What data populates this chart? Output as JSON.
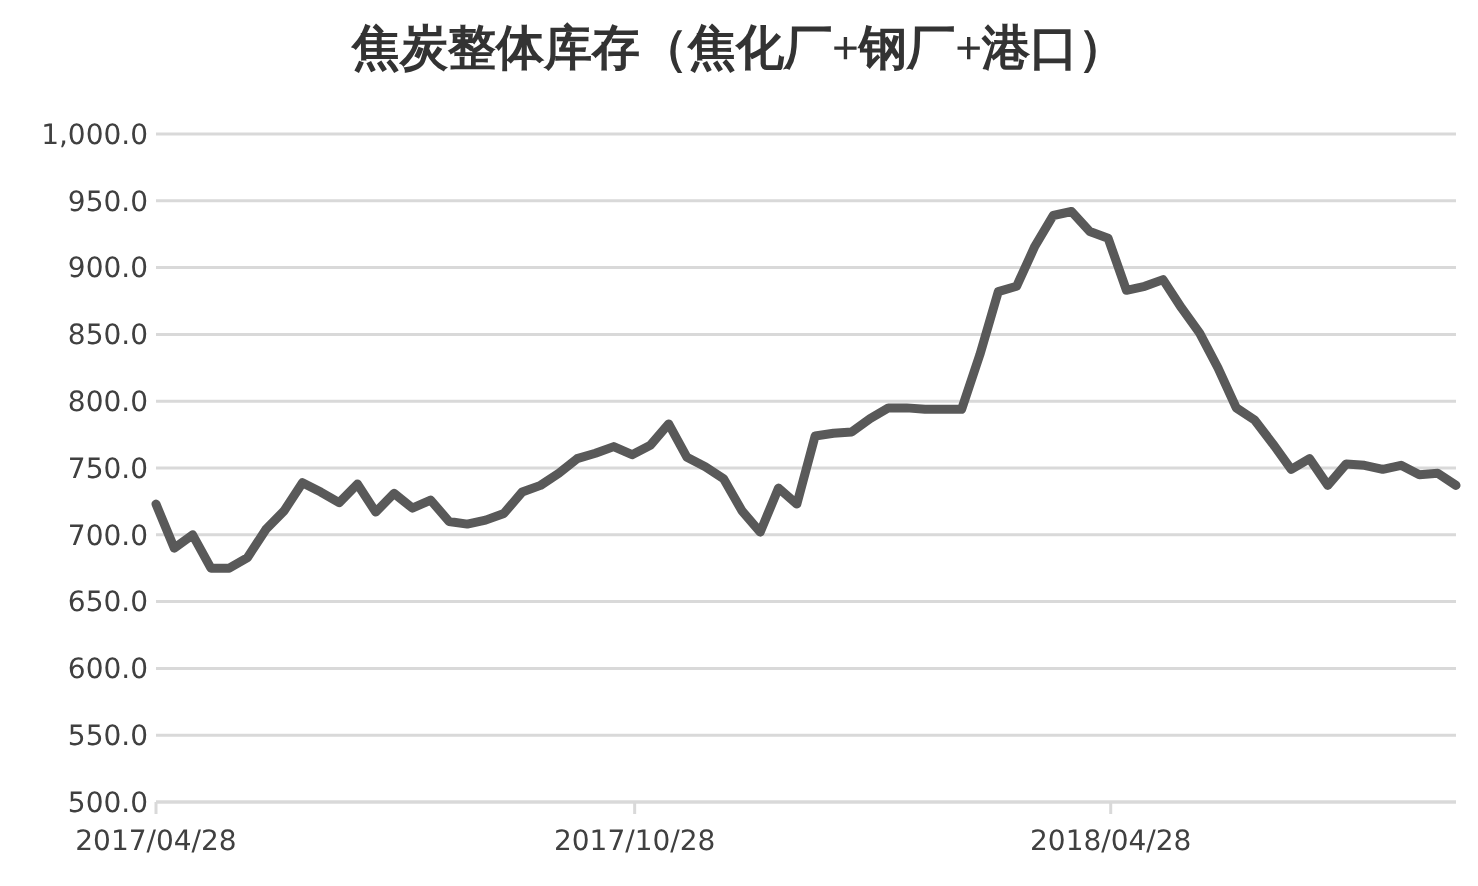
{
  "chart_data": {
    "type": "line",
    "title": "焦炭整体库存（焦化厂+钢厂+港口）",
    "x": [
      "2017-04-28",
      "2017-05-05",
      "2017-05-12",
      "2017-05-19",
      "2017-05-26",
      "2017-06-02",
      "2017-06-09",
      "2017-06-16",
      "2017-06-23",
      "2017-06-30",
      "2017-07-07",
      "2017-07-14",
      "2017-07-21",
      "2017-07-28",
      "2017-08-04",
      "2017-08-11",
      "2017-08-18",
      "2017-08-25",
      "2017-09-01",
      "2017-09-08",
      "2017-09-15",
      "2017-09-22",
      "2017-09-29",
      "2017-10-06",
      "2017-10-13",
      "2017-10-20",
      "2017-10-27",
      "2017-11-03",
      "2017-11-10",
      "2017-11-17",
      "2017-11-24",
      "2017-12-01",
      "2017-12-08",
      "2017-12-15",
      "2017-12-22",
      "2017-12-29",
      "2018-01-05",
      "2018-01-12",
      "2018-01-19",
      "2018-01-26",
      "2018-02-02",
      "2018-02-09",
      "2018-02-16",
      "2018-02-23",
      "2018-03-02",
      "2018-03-09",
      "2018-03-16",
      "2018-03-23",
      "2018-03-30",
      "2018-04-06",
      "2018-04-13",
      "2018-04-20",
      "2018-04-27",
      "2018-05-04",
      "2018-05-11",
      "2018-05-18",
      "2018-05-25",
      "2018-06-01",
      "2018-06-08",
      "2018-06-15",
      "2018-06-22",
      "2018-06-29",
      "2018-07-06",
      "2018-07-13",
      "2018-07-20",
      "2018-07-27",
      "2018-08-03",
      "2018-08-10",
      "2018-08-17",
      "2018-08-24",
      "2018-08-31",
      "2018-09-07"
    ],
    "series": [
      {
        "color": "#595959",
        "values": [
          723,
          690,
          700,
          675,
          675,
          683,
          704,
          718,
          739,
          732,
          724,
          738,
          717,
          731,
          720,
          726,
          710,
          708,
          711,
          716,
          732,
          737,
          746,
          757,
          761,
          766,
          760,
          767,
          783,
          758,
          751,
          742,
          718,
          702,
          735,
          723,
          774,
          776,
          777,
          787,
          795,
          795,
          794,
          794,
          794,
          835,
          882,
          886,
          916,
          939,
          942,
          927,
          922,
          883,
          886,
          891,
          870,
          851,
          825,
          795,
          786,
          768,
          749,
          757,
          737,
          753,
          752,
          749,
          752,
          745,
          746,
          737
        ]
      }
    ],
    "xlim": [
      "2017-04-28",
      "2018-09-07"
    ],
    "xticks": [
      {
        "value": "2017-04-28",
        "label": "2017/04/28"
      },
      {
        "value": "2017-10-28",
        "label": "2017/10/28"
      },
      {
        "value": "2018-04-28",
        "label": "2018/04/28"
      }
    ],
    "ylim": [
      500,
      1000
    ],
    "yticks": [
      {
        "value": 500,
        "label": "500.0"
      },
      {
        "value": 550,
        "label": "550.0"
      },
      {
        "value": 600,
        "label": "600.0"
      },
      {
        "value": 650,
        "label": "650.0"
      },
      {
        "value": 700,
        "label": "700.0"
      },
      {
        "value": 750,
        "label": "750.0"
      },
      {
        "value": 800,
        "label": "800.0"
      },
      {
        "value": 850,
        "label": "850.0"
      },
      {
        "value": 900,
        "label": "900.0"
      },
      {
        "value": 950,
        "label": "950.0"
      },
      {
        "value": 1000,
        "label": "1,000.0"
      }
    ],
    "grid": "y"
  }
}
